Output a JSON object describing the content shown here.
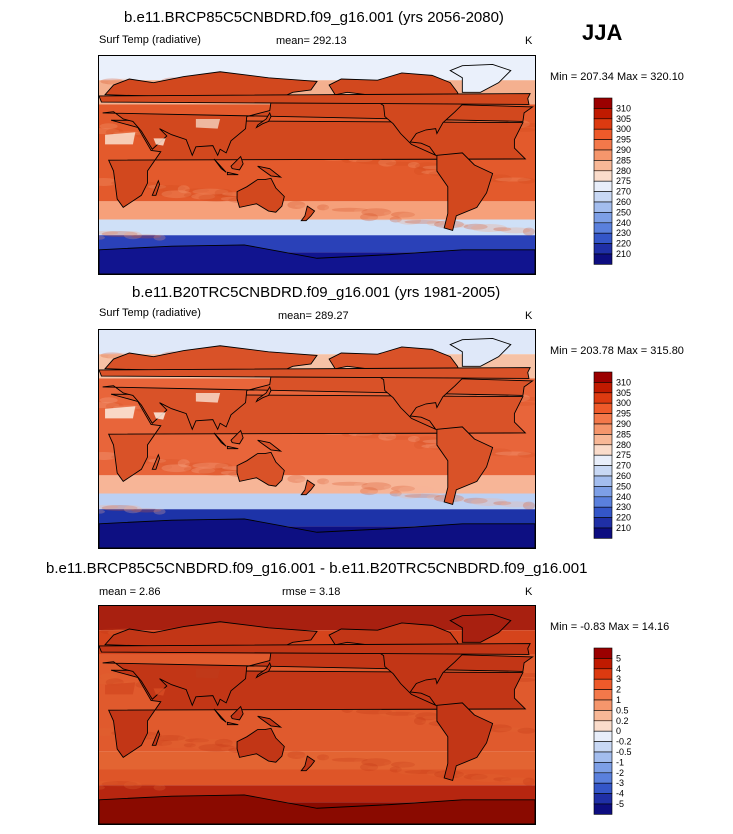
{
  "season": "JJA",
  "panels": [
    {
      "id": "p1",
      "title": "b.e11.BRCP85C5CNBDRD.f09_g16.001 (yrs 2056-2080)",
      "variable": "Surf Temp (radiative)",
      "mean_text": "mean= 292.13",
      "rmse_text": "",
      "units": "K",
      "minmax_text": "Min = 207.34 Max = 320.10",
      "levels": [
        "310",
        "305",
        "300",
        "295",
        "290",
        "285",
        "280",
        "275",
        "270",
        "260",
        "250",
        "240",
        "230",
        "220",
        "210"
      ],
      "colors": [
        "#9b0000",
        "#c01a00",
        "#dd3a10",
        "#ee5a2a",
        "#f3784a",
        "#f5966c",
        "#f8b897",
        "#fadccb",
        "#e8eefa",
        "#c8d8f4",
        "#a3bdee",
        "#7d9fe6",
        "#5a80dd",
        "#3456c8",
        "#1f2fa6",
        "#0d0d80"
      ],
      "map_colors": {
        "north_cold": "#eaf0fb",
        "north_band": "#f4b08f",
        "tropics": "#e35a2c",
        "south_band": "#f6a07a",
        "south_cool": "#cfe0f7",
        "antarctic": "#2a41b8",
        "antarctic_deep": "#11148f",
        "land_hot": "#d2481e",
        "desert": "#f8d8c5",
        "tibet": "#f1c4ad"
      }
    },
    {
      "id": "p2",
      "title": "b.e11.B20TRC5CNBDRD.f09_g16.001 (yrs 1981-2005)",
      "variable": "Surf Temp (radiative)",
      "mean_text": "mean= 289.27",
      "rmse_text": "",
      "units": "K",
      "minmax_text": "Min = 203.78 Max = 315.80",
      "levels": [
        "310",
        "305",
        "300",
        "295",
        "290",
        "285",
        "280",
        "275",
        "270",
        "260",
        "250",
        "240",
        "230",
        "220",
        "210"
      ],
      "colors": [
        "#9b0000",
        "#c01a00",
        "#dd3a10",
        "#ee5a2a",
        "#f3784a",
        "#f5966c",
        "#f8b897",
        "#fadccb",
        "#e8eefa",
        "#c8d8f4",
        "#a3bdee",
        "#7d9fe6",
        "#5a80dd",
        "#3456c8",
        "#1f2fa6",
        "#0d0d80"
      ],
      "map_colors": {
        "north_cold": "#dfe8f9",
        "north_band": "#f6c2a6",
        "tropics": "#e8653a",
        "south_band": "#f7b597",
        "south_cool": "#bcd0f3",
        "antarctic": "#1d33a8",
        "antarctic_deep": "#0d0f82",
        "land_hot": "#d95228",
        "desert": "#fbe4d6",
        "tibet": "#f6d2bf"
      }
    },
    {
      "id": "p3",
      "title": "b.e11.BRCP85C5CNBDRD.f09_g16.001 - b.e11.B20TRC5CNBDRD.f09_g16.001",
      "variable": "",
      "mean_text": "mean =   2.86",
      "rmse_text": "rmse =   3.18",
      "units": "K",
      "minmax_text": "Min =  -0.83 Max =  14.16",
      "levels": [
        "5",
        "4",
        "3",
        "2",
        "1",
        "0.5",
        "0.2",
        "0",
        "-0.2",
        "-0.5",
        "-1",
        "-2",
        "-3",
        "-4",
        "-5"
      ],
      "colors": [
        "#9b0000",
        "#c01a00",
        "#dd3a10",
        "#ee5a2a",
        "#f3784a",
        "#f5966c",
        "#f8b897",
        "#fadccb",
        "#e8eefa",
        "#c8d8f4",
        "#a3bdee",
        "#7d9fe6",
        "#5a80dd",
        "#3456c8",
        "#1f2fa6",
        "#0d0d80"
      ],
      "map_colors": {
        "north_cold": "#a82010",
        "north_band": "#d5441c",
        "tropics": "#e05a2d",
        "south_band": "#e36432",
        "south_cool": "#de5528",
        "antarctic": "#b62610",
        "antarctic_deep": "#8a0a00",
        "land_hot": "#c23616",
        "desert": "#d54a22",
        "tibet": "#c03a1a"
      }
    }
  ]
}
